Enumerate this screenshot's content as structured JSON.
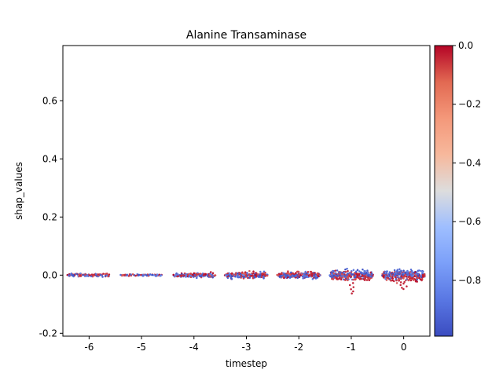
{
  "chart_data": {
    "type": "scatter",
    "subtype": "swarm",
    "title": "Alanine Transaminase",
    "xlabel": "timestep",
    "ylabel": "shap_values",
    "ylim": [
      -0.21,
      0.79
    ],
    "yticks": [
      "-0.2",
      "0.0",
      "0.2",
      "0.4",
      "0.6"
    ],
    "ytick_values": [
      -0.2,
      0.0,
      0.2,
      0.4,
      0.6
    ],
    "categories": [
      "-6",
      "-5",
      "-4",
      "-3",
      "-2",
      "-1",
      "0"
    ],
    "grid": false,
    "colorbar": {
      "colormap": "coolwarm",
      "range": [
        -0.99,
        0.0
      ],
      "ticks": [
        "0.0",
        "−0.2",
        "−0.4",
        "−0.6",
        "−0.8"
      ],
      "tick_values": [
        0.0,
        -0.2,
        -0.4,
        -0.6,
        -0.8
      ],
      "low_color": "#3b4cc0",
      "high_color": "#b40426"
    },
    "groups": [
      {
        "timestep": "-6",
        "n": 120,
        "center": 0.0,
        "spread": 0.004,
        "min": -0.006,
        "max": 0.006
      },
      {
        "timestep": "-5",
        "n": 70,
        "center": 0.0,
        "spread": 0.003,
        "min": -0.004,
        "max": 0.005
      },
      {
        "timestep": "-4",
        "n": 160,
        "center": 0.0,
        "spread": 0.006,
        "min": -0.014,
        "max": 0.015
      },
      {
        "timestep": "-3",
        "n": 230,
        "center": 0.0,
        "spread": 0.008,
        "min": -0.018,
        "max": 0.017
      },
      {
        "timestep": "-2",
        "n": 260,
        "center": 0.0,
        "spread": 0.008,
        "min": -0.015,
        "max": 0.025
      },
      {
        "timestep": "-1",
        "n": 330,
        "center": 0.0,
        "spread": 0.012,
        "min": -0.063,
        "max": 0.022
      },
      {
        "timestep": "0",
        "n": 340,
        "center": 0.0,
        "spread": 0.013,
        "min": -0.048,
        "max": 0.025
      }
    ]
  }
}
